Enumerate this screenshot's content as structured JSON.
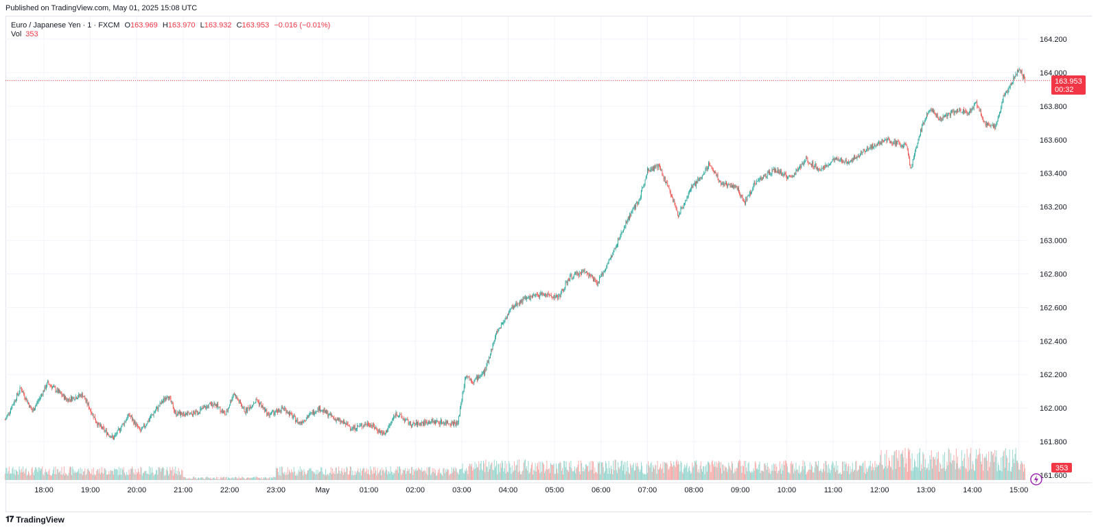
{
  "header": {
    "published": "Published on TradingView.com, May 01, 2025 15:08 UTC"
  },
  "legend": {
    "symbol": "Euro / Japanese Yen · 1 · FXCM",
    "o_label": "O",
    "o_value": "163.969",
    "h_label": "H",
    "h_value": "163.970",
    "l_label": "L",
    "l_value": "163.932",
    "c_label": "C",
    "c_value": "163.953",
    "change": "−0.016 (−0.01%)",
    "vol_label": "Vol",
    "vol_value": "353"
  },
  "price_tag": {
    "price": "163.953",
    "countdown": "00:32"
  },
  "volume_tag": "353",
  "footer": {
    "brand": "TradingView"
  },
  "colors": {
    "up": "#26a69a",
    "down": "#ef5350",
    "up_vol": "#8fd3cb",
    "down_vol": "#f5a3a2",
    "accent": "#f23645"
  },
  "chart_data": {
    "type": "candlestick",
    "symbol": "EURJPY",
    "interval": "1 minute",
    "ylim": [
      161.55,
      164.25
    ],
    "y_ticks": [
      "164.200",
      "164.000",
      "163.800",
      "163.600",
      "163.400",
      "163.200",
      "163.000",
      "162.800",
      "162.600",
      "162.400",
      "162.200",
      "162.000",
      "161.800",
      "161.600"
    ],
    "x_ticks": [
      "18:00",
      "19:00",
      "20:00",
      "21:00",
      "22:00",
      "23:00",
      "May",
      "01:00",
      "02:00",
      "03:00",
      "04:00",
      "05:00",
      "06:00",
      "07:00",
      "08:00",
      "09:00",
      "10:00",
      "11:00",
      "12:00",
      "13:00",
      "14:00",
      "15:00"
    ],
    "last_price": 163.953,
    "series": [
      {
        "time": "17:10",
        "close": 161.93
      },
      {
        "time": "17:30",
        "close": 162.12
      },
      {
        "time": "17:45",
        "close": 161.98
      },
      {
        "time": "18:05",
        "close": 162.15
      },
      {
        "time": "18:30",
        "close": 162.05
      },
      {
        "time": "18:50",
        "close": 162.08
      },
      {
        "time": "19:10",
        "close": 161.9
      },
      {
        "time": "19:30",
        "close": 161.82
      },
      {
        "time": "19:50",
        "close": 161.96
      },
      {
        "time": "20:05",
        "close": 161.86
      },
      {
        "time": "20:20",
        "close": 161.96
      },
      {
        "time": "20:40",
        "close": 162.08
      },
      {
        "time": "20:50",
        "close": 161.97
      },
      {
        "time": "21:10",
        "close": 161.96
      },
      {
        "time": "21:40",
        "close": 162.03
      },
      {
        "time": "21:55",
        "close": 161.96
      },
      {
        "time": "22:05",
        "close": 162.09
      },
      {
        "time": "22:20",
        "close": 161.98
      },
      {
        "time": "22:35",
        "close": 162.05
      },
      {
        "time": "22:50",
        "close": 161.96
      },
      {
        "time": "23:10",
        "close": 162.0
      },
      {
        "time": "23:30",
        "close": 161.91
      },
      {
        "time": "23:55",
        "close": 162.0
      },
      {
        "time": "00:15",
        "close": 161.94
      },
      {
        "time": "00:40",
        "close": 161.88
      },
      {
        "time": "01:00",
        "close": 161.91
      },
      {
        "time": "01:20",
        "close": 161.84
      },
      {
        "time": "01:35",
        "close": 161.97
      },
      {
        "time": "01:55",
        "close": 161.9
      },
      {
        "time": "02:20",
        "close": 161.92
      },
      {
        "time": "02:55",
        "close": 161.91
      },
      {
        "time": "03:05",
        "close": 162.2
      },
      {
        "time": "03:15",
        "close": 162.16
      },
      {
        "time": "03:30",
        "close": 162.22
      },
      {
        "time": "03:45",
        "close": 162.45
      },
      {
        "time": "04:05",
        "close": 162.6
      },
      {
        "time": "04:20",
        "close": 162.65
      },
      {
        "time": "04:45",
        "close": 162.68
      },
      {
        "time": "05:05",
        "close": 162.66
      },
      {
        "time": "05:20",
        "close": 162.78
      },
      {
        "time": "05:40",
        "close": 162.82
      },
      {
        "time": "05:55",
        "close": 162.74
      },
      {
        "time": "06:15",
        "close": 162.92
      },
      {
        "time": "06:35",
        "close": 163.13
      },
      {
        "time": "06:50",
        "close": 163.25
      },
      {
        "time": "07:00",
        "close": 163.42
      },
      {
        "time": "07:15",
        "close": 163.44
      },
      {
        "time": "07:30",
        "close": 163.28
      },
      {
        "time": "07:40",
        "close": 163.15
      },
      {
        "time": "07:55",
        "close": 163.3
      },
      {
        "time": "08:10",
        "close": 163.38
      },
      {
        "time": "08:20",
        "close": 163.46
      },
      {
        "time": "08:35",
        "close": 163.34
      },
      {
        "time": "08:55",
        "close": 163.32
      },
      {
        "time": "09:05",
        "close": 163.22
      },
      {
        "time": "09:20",
        "close": 163.35
      },
      {
        "time": "09:45",
        "close": 163.42
      },
      {
        "time": "10:05",
        "close": 163.37
      },
      {
        "time": "10:25",
        "close": 163.48
      },
      {
        "time": "10:45",
        "close": 163.42
      },
      {
        "time": "11:00",
        "close": 163.48
      },
      {
        "time": "11:20",
        "close": 163.47
      },
      {
        "time": "11:45",
        "close": 163.55
      },
      {
        "time": "12:10",
        "close": 163.6
      },
      {
        "time": "12:35",
        "close": 163.56
      },
      {
        "time": "12:40",
        "close": 163.42
      },
      {
        "time": "12:55",
        "close": 163.68
      },
      {
        "time": "13:05",
        "close": 163.78
      },
      {
        "time": "13:20",
        "close": 163.72
      },
      {
        "time": "13:40",
        "close": 163.78
      },
      {
        "time": "13:55",
        "close": 163.76
      },
      {
        "time": "14:05",
        "close": 163.82
      },
      {
        "time": "14:15",
        "close": 163.7
      },
      {
        "time": "14:30",
        "close": 163.68
      },
      {
        "time": "14:40",
        "close": 163.85
      },
      {
        "time": "14:55",
        "close": 163.98
      },
      {
        "time": "15:00",
        "close": 164.03
      },
      {
        "time": "15:08",
        "close": 163.953
      }
    ]
  }
}
